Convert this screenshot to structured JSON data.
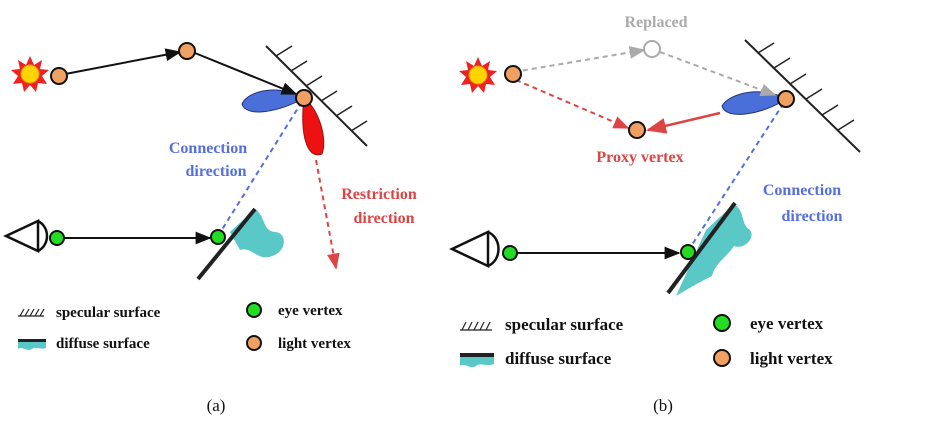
{
  "colors": {
    "light_vertex": "#F0A060",
    "eye_vertex": "#22DD22",
    "diffuse": "#5BC8C8",
    "lobe_blue": "#4A6FD8",
    "lobe_red": "#EE1111",
    "connection": "#5570DD",
    "restriction": "#DD4444",
    "replaced": "#AAAAAA",
    "path": "#111111"
  },
  "panel_a": {
    "caption": "(a)",
    "connection_label": [
      "Connection",
      "direction"
    ],
    "restriction_label": [
      "Restriction",
      "direction"
    ],
    "legend": {
      "specular": "specular surface",
      "diffuse": "diffuse surface",
      "eye": "eye vertex",
      "light": "light vertex"
    }
  },
  "panel_b": {
    "caption": "(b)",
    "replaced_label": "Replaced",
    "proxy_label": "Proxy vertex",
    "connection_label": [
      "Connection",
      "direction"
    ],
    "legend": {
      "specular": "specular surface",
      "diffuse": "diffuse surface",
      "eye": "eye vertex",
      "light": "light vertex"
    }
  }
}
